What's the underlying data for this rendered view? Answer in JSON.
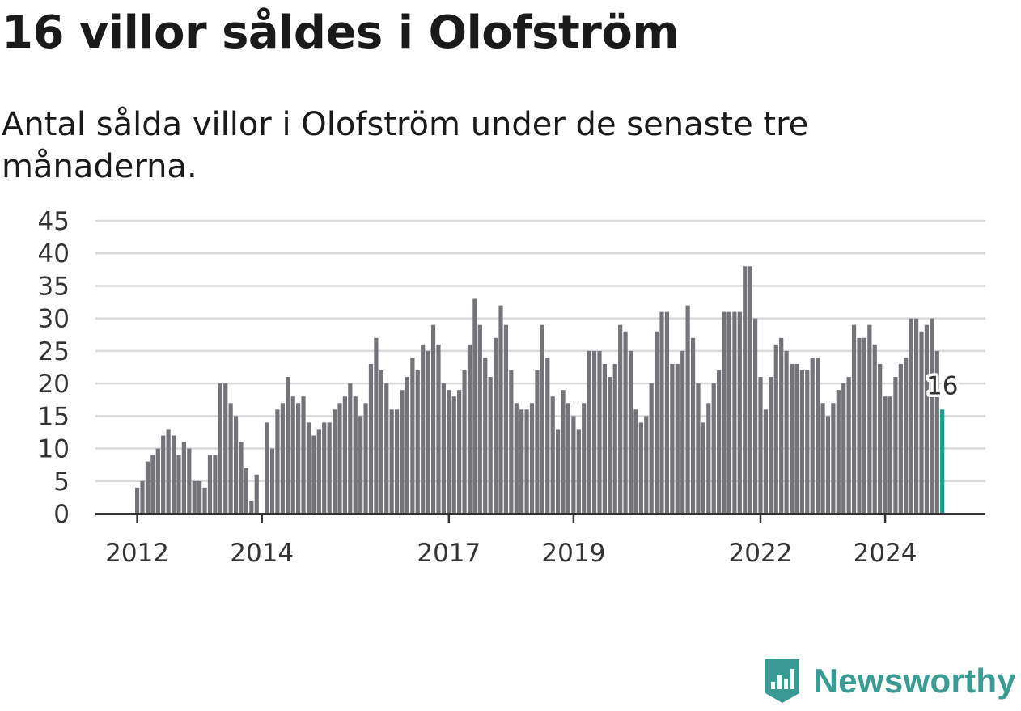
{
  "title": "16 villor såldes i Olofström",
  "subtitle": "Antal sålda villor i Olofström under de senaste tre månaderna.",
  "brand": {
    "name": "Newsworthy",
    "color": "#3a9a94",
    "icon": "newsworthy-logo-icon"
  },
  "colors": {
    "bar": "#747378",
    "highlight": "#1d9a93",
    "grid": "#dadada",
    "axis": "#333333"
  },
  "chart_data": {
    "type": "bar",
    "ylim": [
      0,
      45
    ],
    "yticks": [
      0,
      5,
      10,
      15,
      20,
      25,
      30,
      35,
      40,
      45
    ],
    "xticks": [
      "2012",
      "2014",
      "2017",
      "2019",
      "2022",
      "2024"
    ],
    "x_start": "2012-01",
    "highlight_label": "16",
    "grid": true,
    "values": [
      4,
      5,
      8,
      9,
      10,
      12,
      13,
      12,
      9,
      11,
      10,
      5,
      5,
      4,
      9,
      9,
      20,
      20,
      17,
      15,
      11,
      7,
      2,
      6,
      0,
      14,
      10,
      16,
      17,
      21,
      18,
      17,
      18,
      14,
      12,
      13,
      14,
      14,
      16,
      17,
      18,
      20,
      18,
      15,
      17,
      23,
      27,
      22,
      20,
      16,
      16,
      19,
      21,
      24,
      22,
      26,
      25,
      29,
      26,
      20,
      19,
      18,
      19,
      22,
      26,
      33,
      29,
      24,
      21,
      27,
      32,
      29,
      22,
      17,
      16,
      16,
      17,
      22,
      29,
      24,
      18,
      13,
      19,
      17,
      15,
      13,
      17,
      25,
      25,
      25,
      23,
      21,
      23,
      29,
      28,
      25,
      16,
      14,
      15,
      20,
      28,
      31,
      31,
      23,
      23,
      25,
      32,
      27,
      20,
      14,
      17,
      20,
      22,
      31,
      31,
      31,
      31,
      38,
      38,
      30,
      21,
      16,
      21,
      26,
      27,
      25,
      23,
      23,
      22,
      22,
      24,
      24,
      17,
      15,
      17,
      19,
      20,
      21,
      29,
      27,
      27,
      29,
      26,
      23,
      18,
      18,
      21,
      23,
      24,
      30,
      30,
      28,
      29,
      30,
      25,
      16
    ]
  }
}
